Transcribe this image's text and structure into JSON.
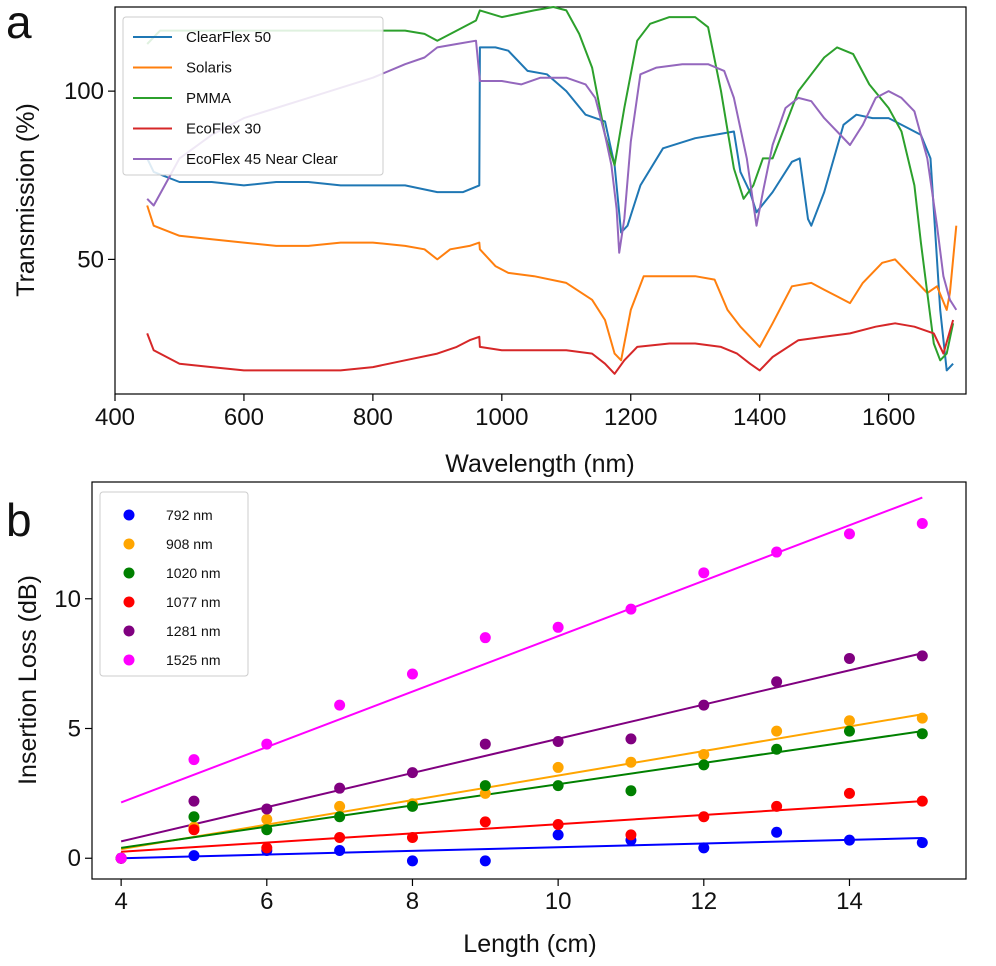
{
  "chart_data": [
    {
      "panel": "a",
      "type": "line",
      "title": "",
      "xlabel": "Wavelength (nm)",
      "ylabel": "Transmission (%)",
      "xlim": [
        400,
        1720
      ],
      "ylim": [
        10,
        125
      ],
      "xticks": [
        400,
        600,
        800,
        1000,
        1200,
        1400,
        1600
      ],
      "yticks": [
        50,
        100
      ],
      "grid": false,
      "legend_position": "top-left",
      "series": [
        {
          "name": "ClearFlex 50",
          "color": "#1f77b4",
          "points": [
            [
              450,
              80
            ],
            [
              460,
              76
            ],
            [
              500,
              73
            ],
            [
              550,
              73
            ],
            [
              600,
              72
            ],
            [
              650,
              73
            ],
            [
              700,
              73
            ],
            [
              750,
              72
            ],
            [
              800,
              72
            ],
            [
              850,
              72
            ],
            [
              900,
              70
            ],
            [
              940,
              70
            ],
            [
              965,
              72
            ],
            [
              966,
              113
            ],
            [
              990,
              113
            ],
            [
              1010,
              112
            ],
            [
              1040,
              106
            ],
            [
              1070,
              105
            ],
            [
              1100,
              100
            ],
            [
              1130,
              93
            ],
            [
              1160,
              91
            ],
            [
              1175,
              78
            ],
            [
              1185,
              58
            ],
            [
              1195,
              60
            ],
            [
              1215,
              72
            ],
            [
              1250,
              83
            ],
            [
              1300,
              86
            ],
            [
              1330,
              87
            ],
            [
              1360,
              88
            ],
            [
              1370,
              76
            ],
            [
              1385,
              70
            ],
            [
              1395,
              64
            ],
            [
              1420,
              70
            ],
            [
              1450,
              79
            ],
            [
              1462,
              80
            ],
            [
              1475,
              62
            ],
            [
              1480,
              60
            ],
            [
              1500,
              70
            ],
            [
              1530,
              90
            ],
            [
              1550,
              93
            ],
            [
              1575,
              92
            ],
            [
              1600,
              92
            ],
            [
              1630,
              89
            ],
            [
              1650,
              87
            ],
            [
              1665,
              80
            ],
            [
              1680,
              35
            ],
            [
              1690,
              17
            ],
            [
              1700,
              19
            ]
          ]
        },
        {
          "name": "Solaris",
          "color": "#ff7f0e",
          "points": [
            [
              450,
              66
            ],
            [
              460,
              60
            ],
            [
              500,
              57
            ],
            [
              550,
              56
            ],
            [
              600,
              55
            ],
            [
              650,
              54
            ],
            [
              700,
              54
            ],
            [
              750,
              55
            ],
            [
              800,
              55
            ],
            [
              850,
              54
            ],
            [
              880,
              53
            ],
            [
              900,
              50
            ],
            [
              920,
              53
            ],
            [
              950,
              54
            ],
            [
              965,
              55
            ],
            [
              966,
              53
            ],
            [
              990,
              48
            ],
            [
              1010,
              46
            ],
            [
              1050,
              45
            ],
            [
              1100,
              43
            ],
            [
              1140,
              38
            ],
            [
              1160,
              32
            ],
            [
              1175,
              22
            ],
            [
              1185,
              20
            ],
            [
              1200,
              35
            ],
            [
              1220,
              45
            ],
            [
              1260,
              45
            ],
            [
              1300,
              45
            ],
            [
              1330,
              44
            ],
            [
              1350,
              35
            ],
            [
              1370,
              30
            ],
            [
              1390,
              26
            ],
            [
              1400,
              24
            ],
            [
              1420,
              31
            ],
            [
              1450,
              42
            ],
            [
              1480,
              43
            ],
            [
              1500,
              41
            ],
            [
              1520,
              39
            ],
            [
              1540,
              37
            ],
            [
              1560,
              43
            ],
            [
              1590,
              49
            ],
            [
              1610,
              50
            ],
            [
              1630,
              46
            ],
            [
              1660,
              40
            ],
            [
              1675,
              42
            ],
            [
              1690,
              35
            ],
            [
              1695,
              40
            ],
            [
              1705,
              60
            ]
          ]
        },
        {
          "name": "PMMA",
          "color": "#2ca02c",
          "points": [
            [
              450,
              114
            ],
            [
              470,
              118
            ],
            [
              500,
              118
            ],
            [
              550,
              118
            ],
            [
              600,
              118
            ],
            [
              650,
              118
            ],
            [
              700,
              118
            ],
            [
              750,
              118
            ],
            [
              800,
              118
            ],
            [
              850,
              118
            ],
            [
              880,
              117
            ],
            [
              900,
              115
            ],
            [
              930,
              118
            ],
            [
              960,
              121
            ],
            [
              966,
              124
            ],
            [
              1000,
              122
            ],
            [
              1050,
              124
            ],
            [
              1080,
              125
            ],
            [
              1100,
              124
            ],
            [
              1120,
              117
            ],
            [
              1140,
              107
            ],
            [
              1160,
              87
            ],
            [
              1175,
              78
            ],
            [
              1190,
              95
            ],
            [
              1210,
              115
            ],
            [
              1230,
              120
            ],
            [
              1260,
              122
            ],
            [
              1300,
              122
            ],
            [
              1320,
              119
            ],
            [
              1340,
              100
            ],
            [
              1360,
              77
            ],
            [
              1375,
              68
            ],
            [
              1390,
              72
            ],
            [
              1405,
              80
            ],
            [
              1420,
              80
            ],
            [
              1440,
              90
            ],
            [
              1460,
              100
            ],
            [
              1480,
              105
            ],
            [
              1500,
              110
            ],
            [
              1520,
              113
            ],
            [
              1545,
              111
            ],
            [
              1570,
              102
            ],
            [
              1600,
              95
            ],
            [
              1620,
              88
            ],
            [
              1640,
              72
            ],
            [
              1650,
              55
            ],
            [
              1660,
              40
            ],
            [
              1670,
              25
            ],
            [
              1680,
              20
            ],
            [
              1690,
              22
            ],
            [
              1700,
              31
            ]
          ]
        },
        {
          "name": "EcoFlex 30",
          "color": "#d62728",
          "points": [
            [
              450,
              28
            ],
            [
              460,
              23
            ],
            [
              500,
              19
            ],
            [
              550,
              18
            ],
            [
              600,
              17
            ],
            [
              650,
              17
            ],
            [
              700,
              17
            ],
            [
              750,
              17
            ],
            [
              800,
              18
            ],
            [
              850,
              20
            ],
            [
              900,
              22
            ],
            [
              930,
              24
            ],
            [
              950,
              26
            ],
            [
              965,
              27
            ],
            [
              966,
              24
            ],
            [
              1000,
              23
            ],
            [
              1050,
              23
            ],
            [
              1100,
              23
            ],
            [
              1140,
              22
            ],
            [
              1160,
              19
            ],
            [
              1175,
              16
            ],
            [
              1190,
              20
            ],
            [
              1210,
              24
            ],
            [
              1260,
              25
            ],
            [
              1300,
              25
            ],
            [
              1340,
              24
            ],
            [
              1365,
              22
            ],
            [
              1385,
              19
            ],
            [
              1400,
              17
            ],
            [
              1420,
              21
            ],
            [
              1460,
              26
            ],
            [
              1500,
              27
            ],
            [
              1540,
              28
            ],
            [
              1580,
              30
            ],
            [
              1610,
              31
            ],
            [
              1640,
              30
            ],
            [
              1670,
              28
            ],
            [
              1685,
              22
            ],
            [
              1700,
              32
            ]
          ]
        },
        {
          "name": "EcoFlex 45 Near Clear",
          "color": "#9467bd",
          "points": [
            [
              450,
              68
            ],
            [
              460,
              66
            ],
            [
              480,
              73
            ],
            [
              500,
              80
            ],
            [
              550,
              87
            ],
            [
              600,
              92
            ],
            [
              650,
              95
            ],
            [
              700,
              98
            ],
            [
              750,
              101
            ],
            [
              800,
              104
            ],
            [
              850,
              108
            ],
            [
              880,
              110
            ],
            [
              900,
              113
            ],
            [
              930,
              114
            ],
            [
              960,
              115
            ],
            [
              966,
              103
            ],
            [
              1000,
              103
            ],
            [
              1030,
              102
            ],
            [
              1060,
              104
            ],
            [
              1100,
              104
            ],
            [
              1130,
              102
            ],
            [
              1145,
              98
            ],
            [
              1160,
              87
            ],
            [
              1170,
              78
            ],
            [
              1178,
              65
            ],
            [
              1182,
              52
            ],
            [
              1190,
              62
            ],
            [
              1200,
              85
            ],
            [
              1215,
              105
            ],
            [
              1240,
              107
            ],
            [
              1280,
              108
            ],
            [
              1320,
              108
            ],
            [
              1345,
              106
            ],
            [
              1360,
              98
            ],
            [
              1380,
              80
            ],
            [
              1395,
              60
            ],
            [
              1405,
              70
            ],
            [
              1420,
              84
            ],
            [
              1440,
              95
            ],
            [
              1460,
              98
            ],
            [
              1480,
              97
            ],
            [
              1500,
              92
            ],
            [
              1520,
              88
            ],
            [
              1540,
              84
            ],
            [
              1560,
              90
            ],
            [
              1580,
              98
            ],
            [
              1600,
              100
            ],
            [
              1620,
              98
            ],
            [
              1640,
              94
            ],
            [
              1660,
              80
            ],
            [
              1675,
              60
            ],
            [
              1685,
              45
            ],
            [
              1695,
              38
            ],
            [
              1705,
              35
            ]
          ]
        }
      ]
    },
    {
      "panel": "b",
      "type": "scatter",
      "title": "",
      "xlabel": "Length (cm)",
      "ylabel": "Insertion Loss (dB)",
      "xlim": [
        3.6,
        15.6
      ],
      "ylim": [
        -0.8,
        14.5
      ],
      "xticks": [
        4,
        6,
        8,
        10,
        12,
        14
      ],
      "yticks": [
        0,
        5,
        10
      ],
      "grid": false,
      "legend_position": "top-left",
      "x": [
        4,
        5,
        6,
        7,
        8,
        9,
        10,
        11,
        12,
        13,
        14,
        15
      ],
      "series": [
        {
          "name": "792 nm",
          "color": "#0000ff",
          "values": [
            0.0,
            0.1,
            0.3,
            0.3,
            -0.1,
            -0.1,
            0.9,
            0.7,
            0.4,
            1.0,
            0.7,
            0.6
          ],
          "fit": [
            0.0,
            0.78
          ]
        },
        {
          "name": "908 nm",
          "color": "#ffa500",
          "values": [
            0.0,
            1.2,
            1.5,
            2.0,
            2.1,
            2.5,
            3.5,
            3.7,
            4.0,
            4.9,
            5.3,
            5.4
          ],
          "fit": [
            0.35,
            5.55
          ]
        },
        {
          "name": "1020 nm",
          "color": "#008000",
          "values": [
            0.0,
            1.6,
            1.1,
            1.6,
            2.0,
            2.8,
            2.8,
            2.6,
            3.6,
            4.2,
            4.9,
            4.8
          ],
          "fit": [
            0.4,
            4.9
          ]
        },
        {
          "name": "1077 nm",
          "color": "#ff0000",
          "values": [
            0.0,
            1.1,
            0.4,
            0.8,
            0.8,
            1.4,
            1.3,
            0.9,
            1.6,
            2.0,
            2.5,
            2.2
          ],
          "fit": [
            0.25,
            2.2
          ]
        },
        {
          "name": "1281 nm",
          "color": "#800080",
          "values": [
            0.0,
            2.2,
            1.9,
            2.7,
            3.3,
            4.4,
            4.5,
            4.6,
            5.9,
            6.8,
            7.7,
            7.8
          ],
          "fit": [
            0.65,
            7.9
          ]
        },
        {
          "name": "1525 nm",
          "color": "#ff00ff",
          "values": [
            0.0,
            3.8,
            4.4,
            5.9,
            7.1,
            8.5,
            8.9,
            9.6,
            11.0,
            11.8,
            12.5,
            12.9
          ],
          "fit": [
            2.15,
            13.9
          ]
        }
      ]
    }
  ]
}
